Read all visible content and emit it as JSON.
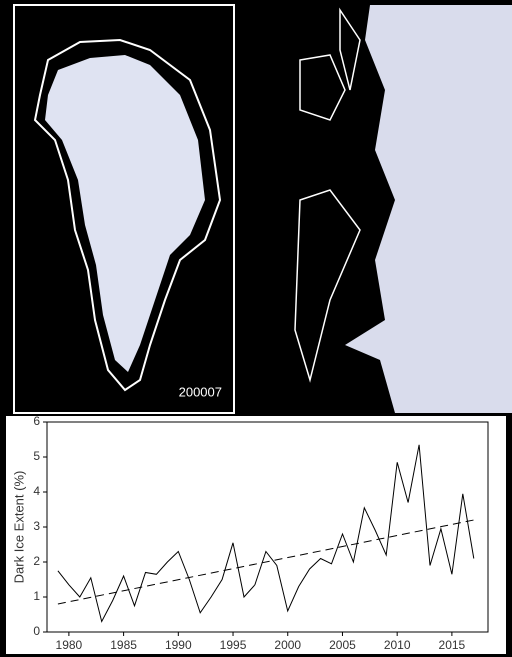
{
  "image_label": "200007",
  "chart_data": {
    "type": "line",
    "y_label": "Dark Ice Extent (%)",
    "x": [
      1979,
      1980,
      1981,
      1982,
      1983,
      1984,
      1985,
      1986,
      1987,
      1988,
      1989,
      1990,
      1991,
      1992,
      1993,
      1994,
      1995,
      1996,
      1997,
      1998,
      1999,
      2000,
      2001,
      2002,
      2003,
      2004,
      2005,
      2006,
      2007,
      2008,
      2009,
      2010,
      2011,
      2012,
      2013,
      2014,
      2015,
      2016,
      2017
    ],
    "series": [
      {
        "color": "#000000",
        "values": [
          1.75,
          1.35,
          1.0,
          1.55,
          0.3,
          0.9,
          1.6,
          0.75,
          1.7,
          1.65,
          2.0,
          2.3,
          1.5,
          0.55,
          1.0,
          1.5,
          2.55,
          1.0,
          1.35,
          2.3,
          1.9,
          0.6,
          1.3,
          1.8,
          2.1,
          1.95,
          2.8,
          2.0,
          3.55,
          2.9,
          2.2,
          4.85,
          3.7,
          5.35,
          1.9,
          2.95,
          1.65,
          3.95,
          2.1
        ]
      }
    ],
    "trend": {
      "x": [
        1979,
        2017
      ],
      "values": [
        0.8,
        3.2
      ],
      "color": "#000000",
      "dashed": true
    },
    "xlim": [
      1978,
      2018.3
    ],
    "ylim": [
      0,
      6
    ],
    "xticks": [
      1980,
      1985,
      1990,
      1995,
      2000,
      2005,
      2010,
      2015
    ],
    "yticks": [
      0,
      1,
      2,
      3,
      4,
      5,
      6
    ]
  }
}
